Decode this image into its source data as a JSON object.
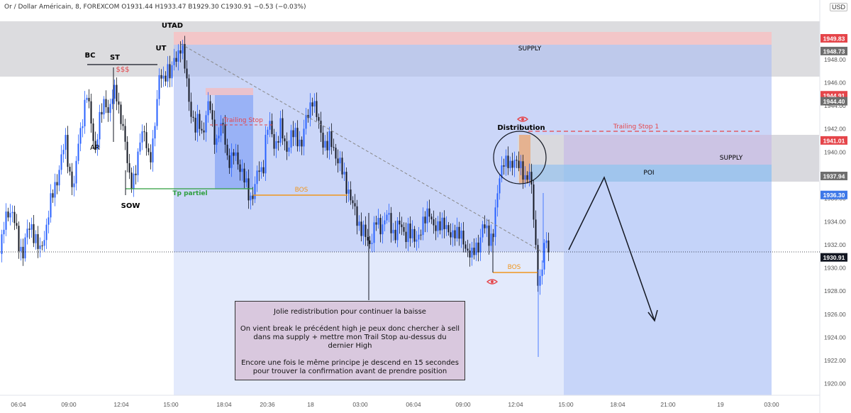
{
  "header": {
    "symbol": "Or / Dollar Américain, 8, FOREXCOM",
    "ohlc": "O1931.44  H1933.47  B1929.30  C1930.91  −0.53 (−0.03%)",
    "currency": "USD"
  },
  "chart_data": {
    "type": "candlestick",
    "yaxis": {
      "range": [
        1919,
        1951.3
      ],
      "ticks": [
        "1920.00",
        "1922.00",
        "1924.00",
        "1926.00",
        "1928.00",
        "1930.00",
        "1932.00",
        "1934.00",
        "1936.00",
        "1938.00",
        "1940.00",
        "1942.00",
        "1944.00",
        "1946.00",
        "1948.00"
      ]
    },
    "xaxis": {
      "ticks": [
        "06:04",
        "09:00",
        "12:04",
        "15:00",
        "18:04",
        "20:36",
        "18",
        "03:00",
        "06:04",
        "09:00",
        "12:04",
        "15:00",
        "18:04",
        "21:00",
        "19",
        "03:00"
      ]
    },
    "price_labels": [
      {
        "text": "1949.83",
        "value": 1949.83,
        "color": "#e5454a"
      },
      {
        "text": "1948.73",
        "value": 1948.73,
        "color": "#6e6e6e"
      },
      {
        "text": "1944.91",
        "value": 1944.91,
        "color": "#e5454a"
      },
      {
        "text": "1944.40",
        "value": 1944.4,
        "color": "#6e6e6e"
      },
      {
        "text": "1941.01",
        "value": 1941.01,
        "color": "#e5454a"
      },
      {
        "text": "1937.94",
        "value": 1937.94,
        "color": "#6e6e6e"
      },
      {
        "text": "1936.30",
        "value": 1936.3,
        "color": "#3d78e8"
      },
      {
        "text": "1930.91",
        "value": 1930.91,
        "color": "#131722"
      }
    ],
    "close_path": [
      [
        0,
        1931.2
      ],
      [
        6,
        1933.9
      ],
      [
        12,
        1935.2
      ],
      [
        18,
        1934.6
      ],
      [
        22,
        1933.1
      ],
      [
        27,
        1931.8
      ],
      [
        32,
        1931.5
      ],
      [
        38,
        1933.0
      ],
      [
        44,
        1933.6
      ],
      [
        50,
        1932.5
      ],
      [
        56,
        1931.2
      ],
      [
        62,
        1932.8
      ],
      [
        68,
        1934.8
      ],
      [
        74,
        1936.3
      ],
      [
        80,
        1937.8
      ],
      [
        86,
        1939.5
      ],
      [
        92,
        1940.8
      ],
      [
        98,
        1938.2
      ],
      [
        104,
        1936.8
      ],
      [
        110,
        1940.9
      ],
      [
        116,
        1943.1
      ],
      [
        122,
        1944.8
      ],
      [
        128,
        1942.7
      ],
      [
        134,
        1940.2
      ],
      [
        138,
        1941.8
      ],
      [
        143,
        1943.6
      ],
      [
        148,
        1944.9
      ],
      [
        153,
        1943.1
      ],
      [
        158,
        1944.6
      ],
      [
        163,
        1945.7
      ],
      [
        168,
        1943.5
      ],
      [
        173,
        1941.7
      ],
      [
        178,
        1939.8
      ],
      [
        182,
        1938.2
      ],
      [
        187,
        1937.2
      ],
      [
        192,
        1938.3
      ],
      [
        196,
        1940.8
      ],
      [
        200,
        1942.3
      ],
      [
        205,
        1941.0
      ],
      [
        210,
        1938.6
      ],
      [
        215,
        1941.1
      ],
      [
        220,
        1944.0
      ],
      [
        225,
        1946.6
      ],
      [
        230,
        1946.2
      ],
      [
        235,
        1947.6
      ],
      [
        240,
        1946.3
      ],
      [
        245,
        1947.9
      ],
      [
        250,
        1948.6
      ],
      [
        255,
        1949.3
      ],
      [
        260,
        1947.3
      ],
      [
        265,
        1945.2
      ],
      [
        270,
        1943.1
      ],
      [
        275,
        1941.8
      ],
      [
        280,
        1942.9
      ],
      [
        285,
        1941.6
      ],
      [
        290,
        1943.0
      ],
      [
        295,
        1944.3
      ],
      [
        300,
        1942.1
      ],
      [
        305,
        1940.8
      ],
      [
        310,
        1941.9
      ],
      [
        315,
        1942.4
      ],
      [
        320,
        1939.6
      ],
      [
        325,
        1938.8
      ],
      [
        330,
        1940.1
      ],
      [
        335,
        1939.4
      ],
      [
        340,
        1938.2
      ],
      [
        345,
        1937.3
      ],
      [
        350,
        1936.6
      ],
      [
        355,
        1936.0
      ],
      [
        360,
        1937.2
      ],
      [
        365,
        1938.7
      ],
      [
        370,
        1938.4
      ],
      [
        375,
        1941.6
      ],
      [
        380,
        1942.3
      ],
      [
        385,
        1941.1
      ],
      [
        390,
        1940.6
      ],
      [
        395,
        1942.0
      ],
      [
        400,
        1941.1
      ],
      [
        405,
        1940.3
      ],
      [
        410,
        1941.2
      ],
      [
        415,
        1941.6
      ],
      [
        420,
        1941.3
      ],
      [
        425,
        1940.6
      ],
      [
        430,
        1942.4
      ],
      [
        435,
        1943.8
      ],
      [
        440,
        1944.7
      ],
      [
        445,
        1943.1
      ],
      [
        450,
        1942.3
      ],
      [
        455,
        1941.1
      ],
      [
        460,
        1940.2
      ],
      [
        465,
        1941.1
      ],
      [
        470,
        1940.5
      ],
      [
        475,
        1939.3
      ],
      [
        480,
        1938.6
      ],
      [
        485,
        1937.9
      ],
      [
        490,
        1936.9
      ],
      [
        495,
        1935.5
      ],
      [
        500,
        1934.9
      ],
      [
        505,
        1934.0
      ],
      [
        510,
        1933.2
      ],
      [
        515,
        1932.6
      ],
      [
        520,
        1932.1
      ],
      [
        525,
        1933.0
      ],
      [
        530,
        1933.9
      ],
      [
        535,
        1933.3
      ],
      [
        540,
        1934.1
      ],
      [
        545,
        1934.6
      ],
      [
        550,
        1933.5
      ],
      [
        555,
        1932.9
      ],
      [
        560,
        1933.8
      ],
      [
        565,
        1933.4
      ],
      [
        570,
        1932.7
      ],
      [
        575,
        1933.6
      ],
      [
        580,
        1932.6
      ],
      [
        585,
        1932.2
      ],
      [
        590,
        1933.1
      ],
      [
        595,
        1933.6
      ],
      [
        600,
        1934.1
      ],
      [
        605,
        1935.1
      ],
      [
        610,
        1933.9
      ],
      [
        615,
        1932.9
      ],
      [
        620,
        1933.8
      ],
      [
        625,
        1934.4
      ],
      [
        630,
        1933.0
      ],
      [
        635,
        1932.5
      ],
      [
        640,
        1933.5
      ],
      [
        645,
        1933.1
      ],
      [
        650,
        1932.4
      ],
      [
        655,
        1932.0
      ],
      [
        660,
        1931.6
      ],
      [
        665,
        1930.9
      ],
      [
        670,
        1931.6
      ],
      [
        675,
        1932.2
      ],
      [
        680,
        1933.6
      ],
      [
        685,
        1933.1
      ],
      [
        690,
        1932.5
      ],
      [
        695,
        1933.3
      ],
      [
        700,
        1935.6
      ],
      [
        705,
        1938.3
      ],
      [
        710,
        1939.6
      ],
      [
        715,
        1938.9
      ],
      [
        720,
        1938.4
      ],
      [
        725,
        1939.7
      ],
      [
        730,
        1939.1
      ],
      [
        735,
        1938.1
      ],
      [
        740,
        1937.7
      ],
      [
        745,
        1938.8
      ],
      [
        750,
        1936.4
      ],
      [
        753,
        1932.9
      ],
      [
        756,
        1930.7
      ],
      [
        759,
        1928.6
      ],
      [
        762,
        1929.4
      ],
      [
        765,
        1930.8
      ],
      [
        768,
        1931.9
      ],
      [
        771,
        1932.2
      ],
      [
        775,
        1930.9
      ]
    ],
    "annotations": [
      {
        "text": "UTAD",
        "color": "#000000"
      },
      {
        "text": "BC",
        "color": "#000000"
      },
      {
        "text": "ST",
        "color": "#000000"
      },
      {
        "text": "UT",
        "color": "#000000"
      },
      {
        "text": "$$$",
        "color": "#e5454a"
      },
      {
        "text": "AR",
        "color": "#000000"
      },
      {
        "text": "SOW",
        "color": "#000000"
      },
      {
        "text": "Tp partiel",
        "color": "#2e9e3e"
      },
      {
        "text": "Trailing Stop",
        "color": "#e5454a"
      },
      {
        "text": "BOS",
        "color": "#f0961e"
      },
      {
        "text": "BOS",
        "color": "#f0961e"
      },
      {
        "text": "Distribution",
        "color": "#000000"
      },
      {
        "text": "Trailing Stop 1",
        "color": "#e5454a"
      },
      {
        "text": "SUPPLY",
        "color": "#000000"
      },
      {
        "text": "SUPPLY",
        "color": "#000000"
      },
      {
        "text": "POI",
        "color": "#000000"
      }
    ]
  },
  "note": {
    "line1": "Jolie redistribution pour continuer la baisse",
    "line2": "On vient break le précédent high je peux donc chercher à sell dans ma supply + mettre mon Trail Stop au-dessus du dernier High",
    "line3": "Encore une fois le même principe je descend en 15 secondes pour trouver la confirmation avant de prendre position"
  },
  "colors": {
    "bull": "#2962ff",
    "bear": "#131722",
    "sell_zone": "#e5454a",
    "supply_band": "#787b86",
    "accent": "#f0961e"
  }
}
